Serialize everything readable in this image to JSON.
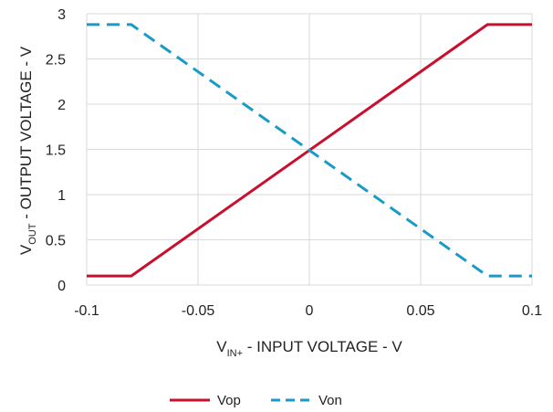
{
  "chart_data": {
    "type": "line",
    "title": "",
    "xlabel": {
      "main": "V",
      "sub": "IN+",
      "rest": " - INPUT VOLTAGE - V"
    },
    "ylabel": {
      "main": "V",
      "sub": "OUT",
      "rest": " - OUTPUT VOLTAGE - V"
    },
    "xlim": [
      -0.1,
      0.1
    ],
    "ylim": [
      0,
      3
    ],
    "xticks": [
      "-0.1",
      "-0.05",
      "0",
      "0.05",
      "0.1"
    ],
    "yticks": [
      "0",
      "0.5",
      "1",
      "1.5",
      "2",
      "2.5",
      "3"
    ],
    "grid": true,
    "legend_position": "bottom-center",
    "series": [
      {
        "name": "Vop",
        "color": "#C8102E",
        "style": "solid",
        "x": [
          -0.1,
          -0.08,
          0.08,
          0.1
        ],
        "y": [
          0.1,
          0.1,
          2.88,
          2.88
        ]
      },
      {
        "name": "Von",
        "color": "#1A9BC7",
        "style": "dashed",
        "x": [
          -0.1,
          -0.08,
          0.08,
          0.1
        ],
        "y": [
          2.88,
          2.88,
          0.1,
          0.1
        ]
      }
    ]
  }
}
